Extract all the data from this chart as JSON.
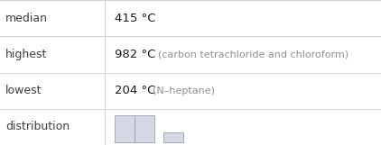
{
  "rows": [
    {
      "label": "median",
      "value": "415 °C",
      "annotation": ""
    },
    {
      "label": "highest",
      "value": "982 °C",
      "annotation": "(carbon tetrachloride and chloroform)"
    },
    {
      "label": "lowest",
      "value": "204 °C",
      "annotation": "(N–heptane)"
    },
    {
      "label": "distribution",
      "value": "",
      "annotation": ""
    }
  ],
  "bar_color": "#d4d8e4",
  "bar_edge_color": "#9aa0b0",
  "background_color": "#ffffff",
  "text_color_label": "#404040",
  "text_color_value": "#1a1a1a",
  "text_color_annotation": "#909090",
  "line_color": "#d0d0d0",
  "col_split": 0.275
}
